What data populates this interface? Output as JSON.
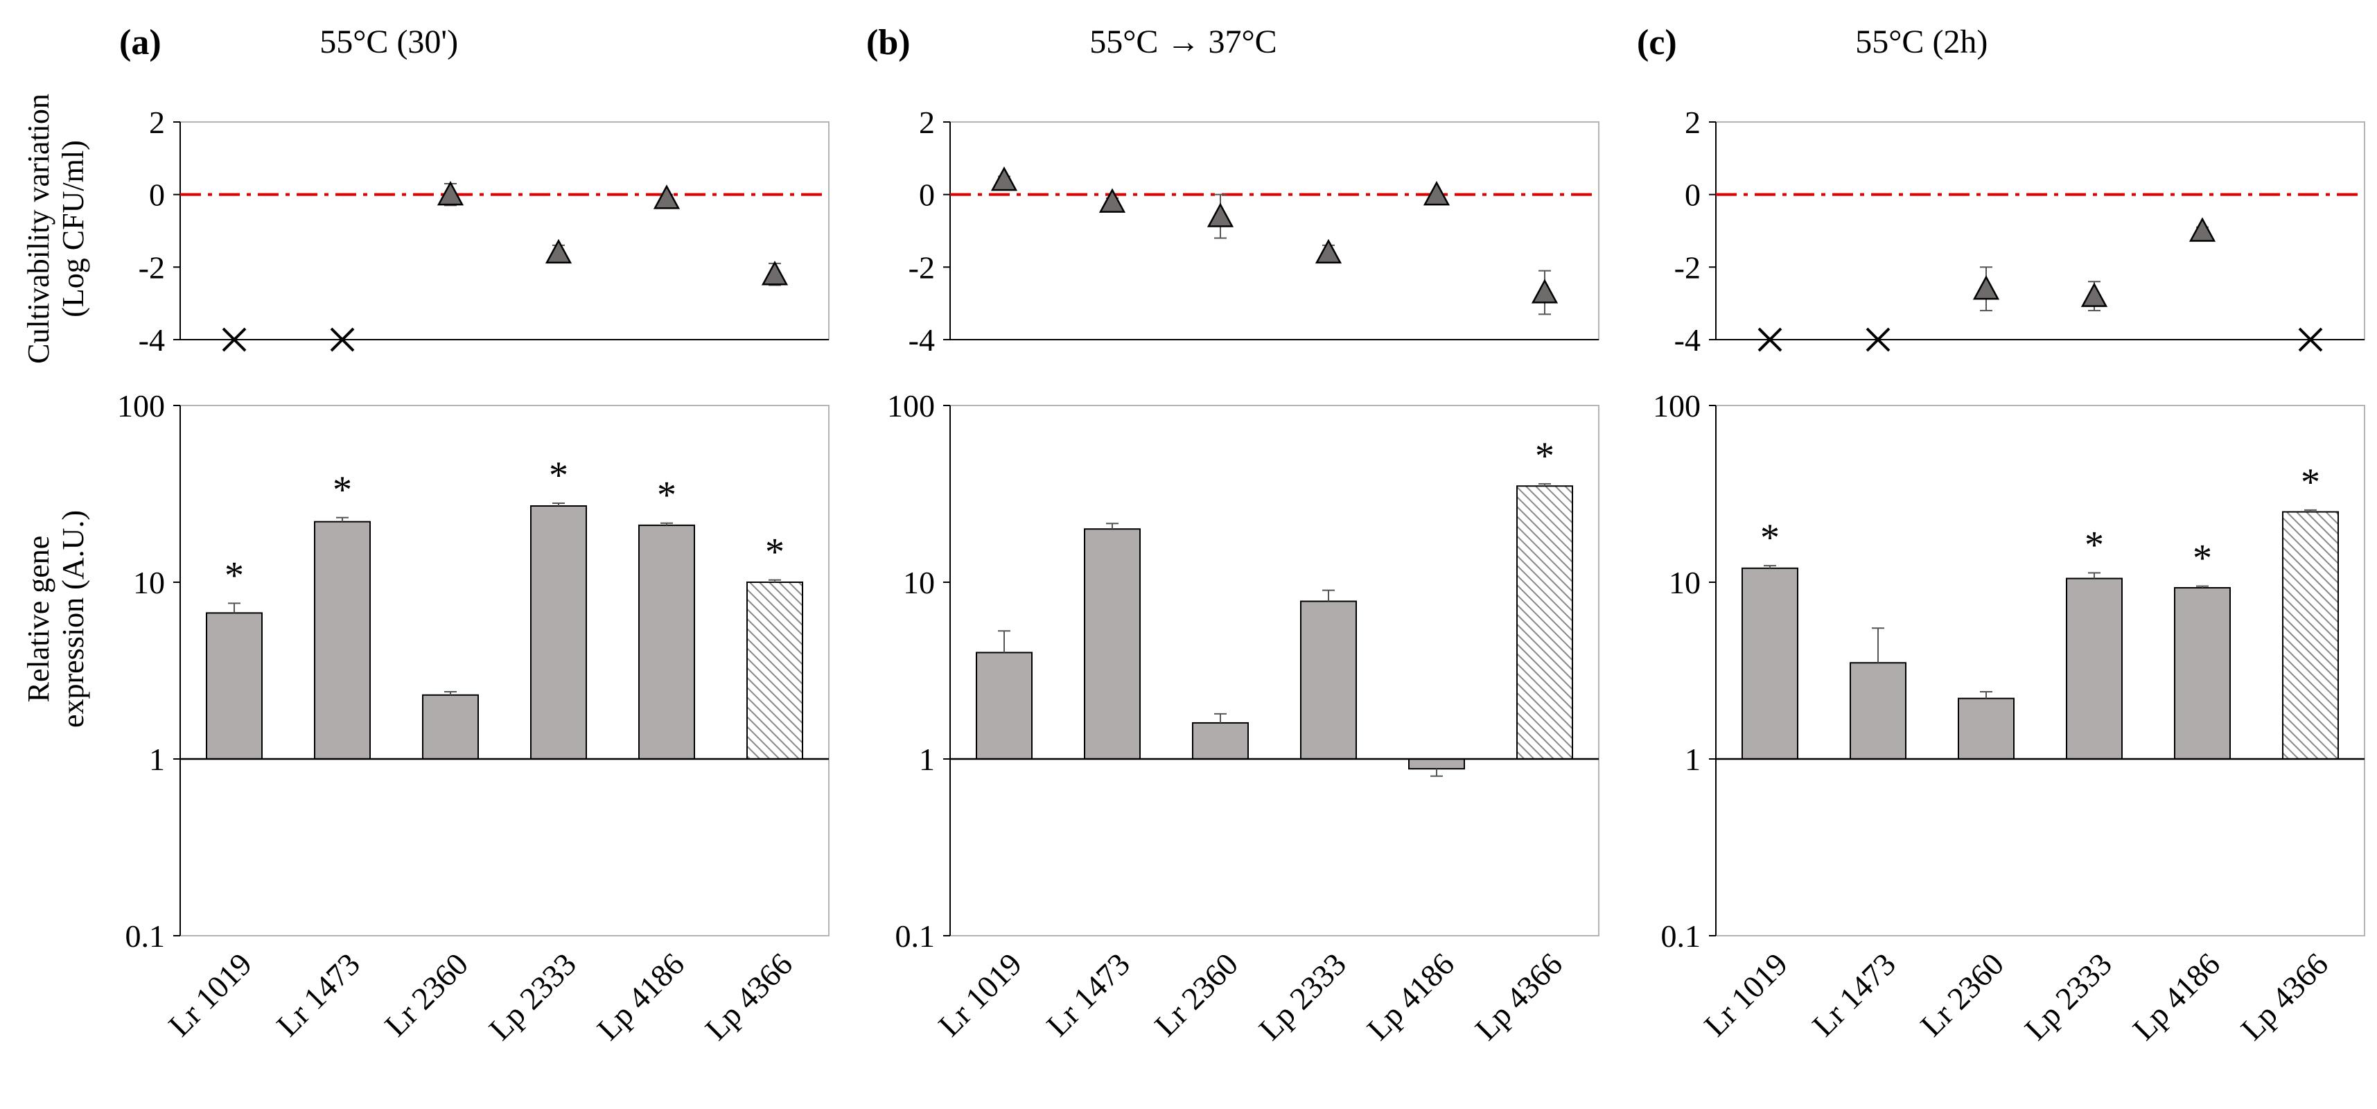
{
  "figure": {
    "y_label_top_line1": "Cultivability variation",
    "y_label_top_line2": "(Log CFU/ml)",
    "y_label_bottom_line1": "Relative gene",
    "y_label_bottom_line2": "expression (A.U.)",
    "strains": [
      "Lr 1019",
      "Lr 1473",
      "Lr 2360",
      "Lp 2333",
      "Lp 4186",
      "Lp 4366"
    ],
    "significance_marker": "*",
    "not_cultivable_marker": "×"
  },
  "colors": {
    "bar_fill": "#b0acab",
    "hatched_fill": "#ffffff",
    "marker_fill": "#6e6b6a",
    "reference_line": "#e00000",
    "axis": "#000000",
    "frame": "#b4b4b4"
  },
  "chart_data": [
    {
      "panel": "(a)",
      "title": "55°C (30')",
      "cultivability": {
        "type": "scatter",
        "categories": [
          "Lr 1019",
          "Lr 1473",
          "Lr 2360",
          "Lp 2333",
          "Lp 4186",
          "Lp 4366"
        ],
        "values": [
          -4,
          -4,
          0.0,
          -1.6,
          -0.1,
          -2.2
        ],
        "err": [
          0,
          0,
          0.3,
          0.2,
          0.1,
          0.3
        ],
        "marker": [
          "x",
          "x",
          "triangle",
          "triangle",
          "triangle",
          "triangle"
        ],
        "ylim": [
          -4,
          2
        ],
        "yticks": [
          2,
          0,
          -2,
          -4
        ],
        "reference_line": 0
      },
      "expression": {
        "type": "bar",
        "y_scale": "log",
        "categories": [
          "Lr 1019",
          "Lr 1473",
          "Lr 2360",
          "Lp 2333",
          "Lp 4186",
          "Lp 4366"
        ],
        "values": [
          6.7,
          22,
          2.3,
          27,
          21,
          10
        ],
        "err": [
          0.9,
          1.2,
          0.1,
          1.0,
          0.6,
          0.3
        ],
        "hatched": [
          false,
          false,
          false,
          false,
          false,
          true
        ],
        "significant": [
          true,
          true,
          false,
          true,
          true,
          true
        ],
        "ylim": [
          0.1,
          100
        ],
        "yticks": [
          100,
          10,
          1,
          0.1
        ]
      }
    },
    {
      "panel": "(b)",
      "title": "55°C → 37°C",
      "cultivability": {
        "type": "scatter",
        "categories": [
          "Lr 1019",
          "Lr 1473",
          "Lr 2360",
          "Lp 2333",
          "Lp 4186",
          "Lp 4366"
        ],
        "values": [
          0.4,
          -0.2,
          -0.6,
          -1.6,
          0.0,
          -2.7
        ],
        "err": [
          0.1,
          0.1,
          0.6,
          0.2,
          0.05,
          0.6
        ],
        "marker": [
          "triangle",
          "triangle",
          "triangle",
          "triangle",
          "triangle",
          "triangle"
        ],
        "ylim": [
          -4,
          2
        ],
        "yticks": [
          2,
          0,
          -2,
          -4
        ],
        "reference_line": 0
      },
      "expression": {
        "type": "bar",
        "y_scale": "log",
        "categories": [
          "Lr 1019",
          "Lr 1473",
          "Lr 2360",
          "Lp 2333",
          "Lp 4186",
          "Lp 4366"
        ],
        "values": [
          4.0,
          20,
          1.6,
          7.8,
          0.88,
          35
        ],
        "err": [
          1.3,
          1.5,
          0.2,
          1.2,
          0.08,
          1.0
        ],
        "hatched": [
          false,
          false,
          false,
          false,
          false,
          true
        ],
        "significant": [
          false,
          false,
          false,
          false,
          false,
          true
        ],
        "ylim": [
          0.1,
          100
        ],
        "yticks": [
          100,
          10,
          1,
          0.1
        ]
      }
    },
    {
      "panel": "(c)",
      "title": "55°C (2h)",
      "cultivability": {
        "type": "scatter",
        "categories": [
          "Lr 1019",
          "Lr 1473",
          "Lr 2360",
          "Lp 2333",
          "Lp 4186",
          "Lp 4366"
        ],
        "values": [
          -4,
          -4,
          -2.6,
          -2.8,
          -1.0,
          -4
        ],
        "err": [
          0,
          0,
          0.6,
          0.4,
          0.1,
          0
        ],
        "marker": [
          "x",
          "x",
          "triangle",
          "triangle",
          "triangle",
          "x"
        ],
        "ylim": [
          -4,
          2
        ],
        "yticks": [
          2,
          0,
          -2,
          -4
        ],
        "reference_line": 0
      },
      "expression": {
        "type": "bar",
        "y_scale": "log",
        "categories": [
          "Lr 1019",
          "Lr 1473",
          "Lr 2360",
          "Lp 2333",
          "Lp 4186",
          "Lp 4366"
        ],
        "values": [
          12,
          3.5,
          2.2,
          10.5,
          9.3,
          25
        ],
        "err": [
          0.4,
          2.0,
          0.2,
          0.8,
          0.2,
          0.6
        ],
        "hatched": [
          false,
          false,
          false,
          false,
          false,
          true
        ],
        "significant": [
          true,
          false,
          false,
          true,
          true,
          true
        ],
        "ylim": [
          0.1,
          100
        ],
        "yticks": [
          100,
          10,
          1,
          0.1
        ]
      }
    }
  ]
}
